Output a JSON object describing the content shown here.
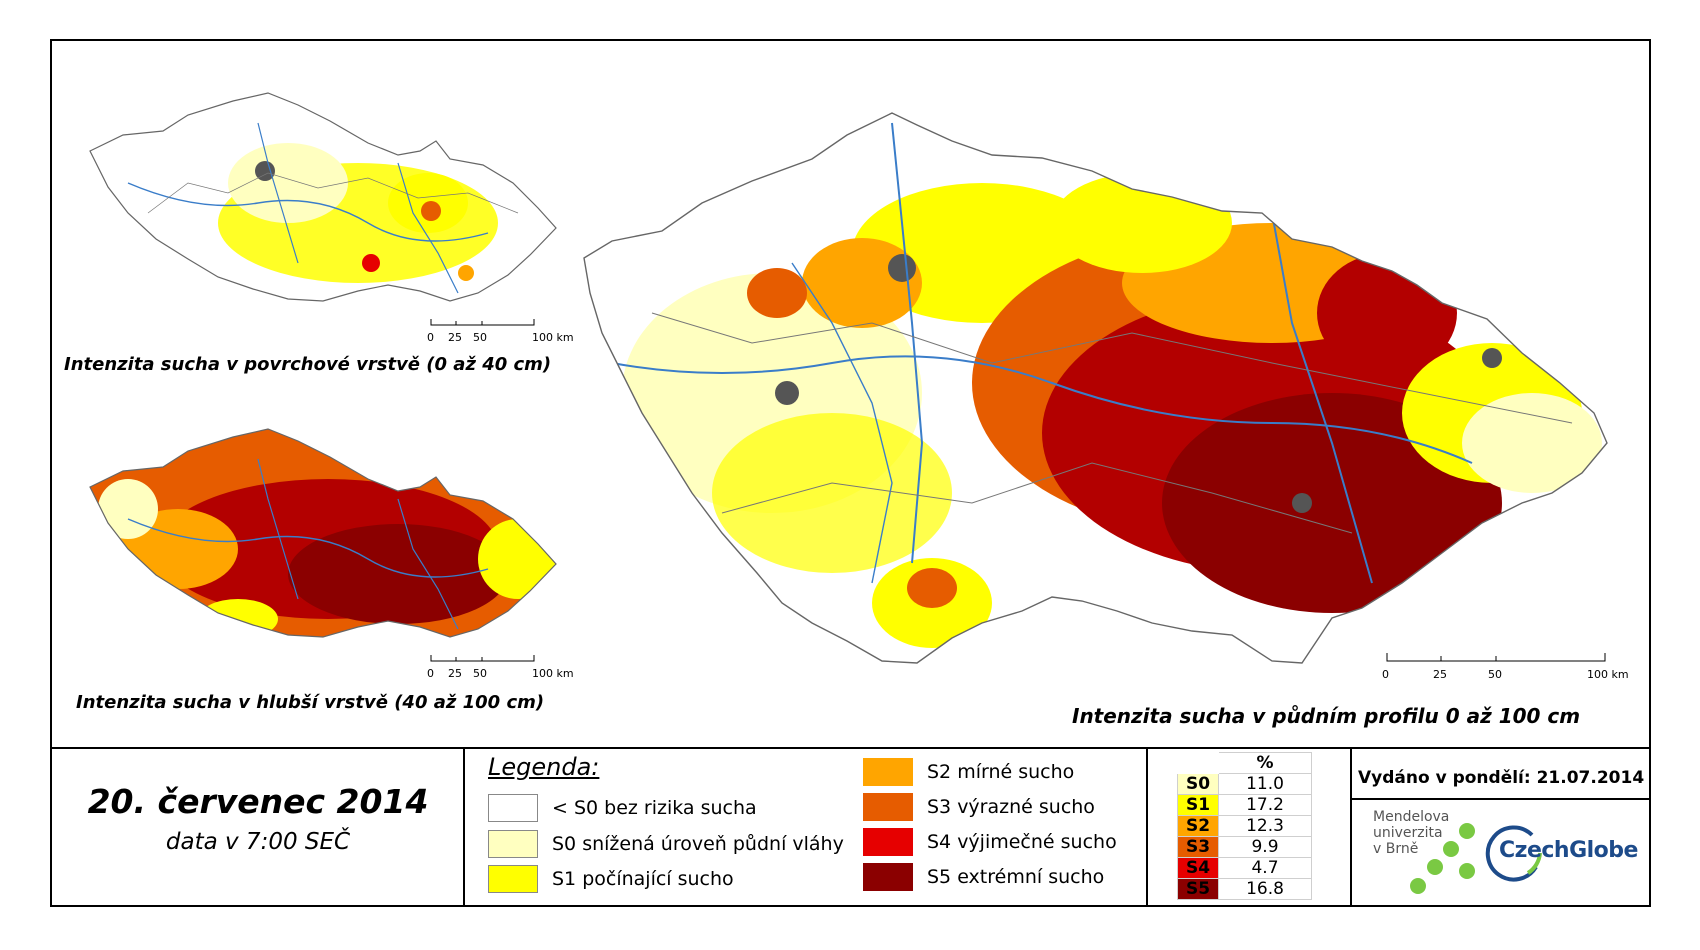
{
  "maps": {
    "surface": {
      "title": "Intenzita sucha v povrchové vrstvě (0 až 40 cm)"
    },
    "deep": {
      "title": "Intenzita sucha v hlubší vrstvě (40 až 100 cm)"
    },
    "profile": {
      "title": "Intenzita sucha v půdním profilu 0 až 100 cm"
    }
  },
  "scale": {
    "labels": [
      "0",
      "25",
      "50",
      "100 km"
    ]
  },
  "date": {
    "title": "20. červenec 2014",
    "subtitle": "data v 7:00 SEČ"
  },
  "legend": {
    "heading": "Legenda:",
    "items": [
      {
        "label": "< S0 bez rizika sucha",
        "color": "#ffffff"
      },
      {
        "label": "S0 snížená úroveň půdní vláhy",
        "color": "#ffffc0"
      },
      {
        "label": "S1 počínající sucho",
        "color": "#ffff00"
      },
      {
        "label": "S2 mírné sucho",
        "color": "#ffa500"
      },
      {
        "label": "S3 výrazné sucho",
        "color": "#e65c00"
      },
      {
        "label": "S4 výjimečné sucho",
        "color": "#e60000"
      },
      {
        "label": "S5 extrémní sucho",
        "color": "#8b0000"
      }
    ]
  },
  "percent_table": {
    "header": "%",
    "rows": [
      {
        "class": "S0",
        "value": "11.0",
        "color": "#ffffc0"
      },
      {
        "class": "S1",
        "value": "17.2",
        "color": "#ffff00"
      },
      {
        "class": "S2",
        "value": "12.3",
        "color": "#ffa500"
      },
      {
        "class": "S3",
        "value": "9.9",
        "color": "#e65c00"
      },
      {
        "class": "S4",
        "value": "4.7",
        "color": "#e60000"
      },
      {
        "class": "S5",
        "value": "16.8",
        "color": "#8b0000"
      }
    ]
  },
  "issued": "Vydáno v pondělí: 21.07.2014",
  "logos": {
    "mendel": [
      "Mendelova",
      "univerzita",
      "v Brně"
    ],
    "czechglobe": "CzechGlobe"
  }
}
